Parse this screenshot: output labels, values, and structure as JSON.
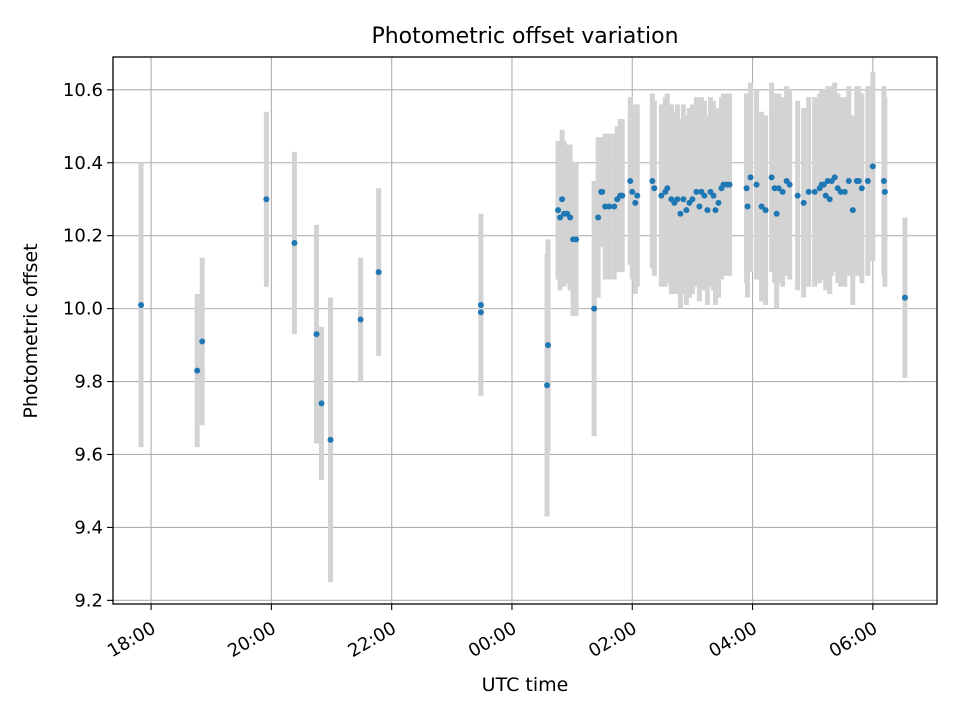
{
  "chart_data": {
    "type": "scatter",
    "title": "Photometric offset variation",
    "xlabel": "UTC time",
    "ylabel": "Photometric offset",
    "x_axis": {
      "kind": "time",
      "range": [
        "17:22",
        "07:04"
      ],
      "ticks": [
        "18:00",
        "20:00",
        "22:00",
        "00:00",
        "02:00",
        "04:00",
        "06:00"
      ]
    },
    "y_axis": {
      "range": [
        9.19,
        10.69
      ],
      "ticks": [
        "9.2",
        "9.4",
        "9.6",
        "9.8",
        "10.0",
        "10.2",
        "10.4",
        "10.6"
      ]
    },
    "grid": true,
    "colors": {
      "point": "#1f77b4",
      "errorbar": "#d3d3d3",
      "grid": "#b0b0b0"
    },
    "series": [
      {
        "x": [
          "17:50",
          "18:46",
          "18:51",
          "19:55",
          "20:23",
          "20:45",
          "20:50",
          "20:59",
          "21:29",
          "21:47",
          "23:29",
          "23:29",
          "00:35",
          "00:36",
          "00:46",
          "00:48",
          "00:50",
          "00:52",
          "00:55",
          "00:58",
          "01:01",
          "01:04",
          "01:22",
          "01:26",
          "01:29",
          "01:30",
          "01:33",
          "01:37",
          "01:42",
          "01:45",
          "01:48",
          "01:50",
          "01:58",
          "02:00",
          "02:03",
          "02:05",
          "02:20",
          "02:22",
          "02:29",
          "02:33",
          "02:35",
          "02:39",
          "02:42",
          "02:45",
          "02:48",
          "02:51",
          "02:54",
          "02:57",
          "03:00",
          "03:04",
          "03:07",
          "03:09",
          "03:12",
          "03:15",
          "03:18",
          "03:21",
          "03:23",
          "03:26",
          "03:29",
          "03:31",
          "03:34",
          "03:37",
          "03:54",
          "03:55",
          "03:58",
          "04:04",
          "04:09",
          "04:13",
          "04:19",
          "04:22",
          "04:24",
          "04:26",
          "04:30",
          "04:34",
          "04:37",
          "04:45",
          "04:51",
          "04:56",
          "05:02",
          "05:07",
          "05:09",
          "05:11",
          "05:13",
          "05:15",
          "05:17",
          "05:19",
          "05:22",
          "05:25",
          "05:28",
          "05:32",
          "05:36",
          "05:40",
          "05:44",
          "05:46",
          "05:49",
          "05:55",
          "06:00",
          "06:11",
          "06:12",
          "06:32"
        ],
        "y": [
          10.01,
          9.83,
          9.91,
          10.3,
          10.18,
          9.93,
          9.74,
          9.64,
          9.97,
          10.1,
          10.01,
          9.99,
          9.79,
          9.9,
          10.27,
          10.25,
          10.3,
          10.26,
          10.26,
          10.25,
          10.19,
          10.19,
          10.0,
          10.25,
          10.32,
          10.32,
          10.28,
          10.28,
          10.28,
          10.3,
          10.31,
          10.31,
          10.35,
          10.32,
          10.29,
          10.31,
          10.35,
          10.33,
          10.31,
          10.32,
          10.33,
          10.3,
          10.29,
          10.3,
          10.26,
          10.3,
          10.27,
          10.29,
          10.3,
          10.32,
          10.28,
          10.32,
          10.31,
          10.27,
          10.32,
          10.31,
          10.27,
          10.29,
          10.33,
          10.34,
          10.34,
          10.34,
          10.33,
          10.28,
          10.36,
          10.34,
          10.28,
          10.27,
          10.36,
          10.33,
          10.26,
          10.33,
          10.32,
          10.35,
          10.34,
          10.31,
          10.29,
          10.32,
          10.32,
          10.33,
          10.34,
          10.34,
          10.31,
          10.35,
          10.3,
          10.35,
          10.36,
          10.33,
          10.32,
          10.32,
          10.35,
          10.27,
          10.35,
          10.35,
          10.33,
          10.35,
          10.39,
          10.35,
          10.32,
          10.03
        ],
        "err": [
          0.39,
          0.21,
          0.23,
          0.24,
          0.25,
          0.3,
          0.21,
          0.39,
          0.17,
          0.23,
          0.25,
          0.22,
          0.36,
          0.29,
          0.19,
          0.2,
          0.19,
          0.2,
          0.19,
          0.2,
          0.21,
          0.21,
          0.35,
          0.22,
          0.15,
          0.15,
          0.2,
          0.2,
          0.2,
          0.2,
          0.21,
          0.21,
          0.23,
          0.24,
          0.25,
          0.25,
          0.24,
          0.24,
          0.25,
          0.26,
          0.26,
          0.26,
          0.25,
          0.26,
          0.26,
          0.26,
          0.26,
          0.26,
          0.26,
          0.26,
          0.26,
          0.26,
          0.26,
          0.26,
          0.26,
          0.26,
          0.26,
          0.26,
          0.25,
          0.25,
          0.25,
          0.25,
          0.26,
          0.25,
          0.26,
          0.26,
          0.26,
          0.26,
          0.26,
          0.26,
          0.26,
          0.26,
          0.26,
          0.26,
          0.26,
          0.26,
          0.26,
          0.26,
          0.26,
          0.26,
          0.26,
          0.26,
          0.26,
          0.26,
          0.26,
          0.26,
          0.26,
          0.26,
          0.26,
          0.26,
          0.26,
          0.26,
          0.26,
          0.26,
          0.26,
          0.26,
          0.26,
          0.26,
          0.26,
          0.22
        ]
      }
    ]
  }
}
